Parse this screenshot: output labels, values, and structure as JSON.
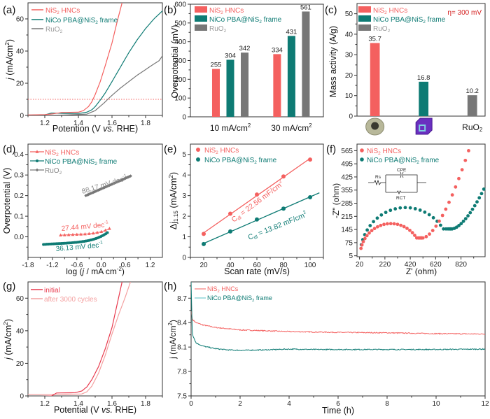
{
  "colors": {
    "nis2": "#f4605f",
    "nico": "#0e7b74",
    "ruo2": "#777777",
    "after": "#f4a0a0",
    "initial": "#e83a4e",
    "eta": "#d42020"
  },
  "chart_data": [
    {
      "panel": "(a)",
      "type": "line",
      "xlabel": "Potention (V vs. RHE)",
      "ylabel": "j (mA/cm2)",
      "xlim": [
        1.1,
        1.9
      ],
      "ylim": [
        0,
        70
      ],
      "xticks": [
        "1.2",
        "1.4",
        "1.6",
        "1.8"
      ],
      "yticks": [
        "0",
        "20",
        "40",
        "60"
      ],
      "reference_line_y": 10,
      "legend": [
        "NiS2 HNCs",
        "NiCo PBA@NiS2 frame",
        "RuO2"
      ],
      "legend_position": "top-left",
      "series": [
        {
          "name": "NiS2 HNCs",
          "color": "nis2",
          "x": [
            1.1,
            1.2,
            1.25,
            1.3,
            1.4,
            1.43,
            1.46,
            1.48,
            1.5,
            1.53,
            1.56,
            1.6,
            1.63,
            1.66
          ],
          "y": [
            0.3,
            0.5,
            1.0,
            1.8,
            2.0,
            3.0,
            5.5,
            8.5,
            13,
            21,
            31,
            45,
            58,
            70
          ]
        },
        {
          "name": "NiCo PBA@NiS2 frame",
          "color": "nico",
          "x": [
            1.1,
            1.2,
            1.24,
            1.3,
            1.4,
            1.45,
            1.48,
            1.5,
            1.53,
            1.56,
            1.6,
            1.65,
            1.7,
            1.75,
            1.8,
            1.85,
            1.9
          ],
          "y": [
            0.2,
            0.3,
            1.5,
            1.3,
            1.2,
            2.0,
            3.5,
            5.5,
            9.5,
            14,
            21,
            30,
            39,
            47,
            54,
            60,
            65
          ]
        },
        {
          "name": "RuO2",
          "color": "ruo2",
          "x": [
            1.1,
            1.3,
            1.45,
            1.5,
            1.55,
            1.6,
            1.65,
            1.7,
            1.75,
            1.8,
            1.85,
            1.88,
            1.9
          ],
          "y": [
            0,
            0.2,
            0.8,
            3,
            7.5,
            12.5,
            17,
            21,
            25,
            28.5,
            32,
            34,
            37
          ]
        }
      ]
    },
    {
      "panel": "(b)",
      "type": "bar",
      "ylabel": "Overpotential (mV)",
      "ylim": [
        0,
        600
      ],
      "yticks": [
        "0",
        "100",
        "200",
        "300",
        "400",
        "500",
        "600"
      ],
      "categories": [
        "10 mA/cm2",
        "30 mA/cm2"
      ],
      "legend_position": "top-left",
      "series": [
        {
          "name": "NiS2 HNCs",
          "color": "nis2",
          "values": [
            255,
            334
          ]
        },
        {
          "name": "NiCo PBA@NiS2 frame",
          "color": "nico",
          "values": [
            304,
            431
          ]
        },
        {
          "name": "RuO2",
          "color": "ruo2",
          "values": [
            342,
            561
          ]
        }
      ]
    },
    {
      "panel": "(c)",
      "type": "bar",
      "ylabel": "Mass activity (A/g)",
      "ylim": [
        0,
        55
      ],
      "yticks": [
        "0",
        "10",
        "20",
        "30",
        "40",
        "50"
      ],
      "annotation": "η= 300 mV",
      "categories": [
        "NiS2 HNCs image",
        "NiCo PBA@NiS2 frame image",
        "RuO2"
      ],
      "category_label_text": "RuO2",
      "legend": [
        "NiS2 HNCs",
        "NiCo PBA@NiS2 frame",
        "RuO2"
      ],
      "legend_position": "top-left",
      "values": [
        35.7,
        16.8,
        10.2
      ],
      "value_labels": [
        "35.7",
        "16.8",
        "10.2"
      ],
      "bar_colors": [
        "nis2",
        "nico",
        "ruo2"
      ]
    },
    {
      "panel": "(d)",
      "type": "scatter",
      "xlabel": "log (j / mA cm-2)",
      "ylabel": "Overpotential (V)",
      "xlim": [
        -1.8,
        1.5
      ],
      "ylim": [
        -0.1,
        0.45
      ],
      "xticks": [
        "-1.8",
        "-1.2",
        "-0.6",
        "0.0",
        "0.6",
        "1.2"
      ],
      "yticks": [
        "0.0",
        "0.1",
        "0.2",
        "0.3",
        "0.4"
      ],
      "legend_position": "top-left",
      "series": [
        {
          "name": "NiS2 HNCs",
          "color": "nis2",
          "marker": "triangle",
          "x_range": [
            -1.0,
            0.2
          ],
          "y_range": [
            0.008,
            0.04
          ],
          "slope_label": "27.44 mV dec-1"
        },
        {
          "name": "NiCo PBA@NiS2 frame",
          "color": "nico",
          "marker": "circle",
          "x_range": [
            -1.42,
            0.15
          ],
          "y_range": [
            -0.037,
            0.02
          ],
          "slope_label": "36.13 mV dec-1"
        },
        {
          "name": "RuO2",
          "color": "ruo2",
          "marker": "diamond",
          "x_range": [
            -0.38,
            0.72
          ],
          "y_range": [
            0.2,
            0.295
          ],
          "slope_label": "88.17 mV dec-1"
        }
      ]
    },
    {
      "panel": "(e)",
      "type": "scatter",
      "xlabel": "Scan rate (mV/s)",
      "ylabel": "Δj1.15 (mA/cm2)",
      "xlim": [
        10,
        110
      ],
      "ylim": [
        0,
        5.5
      ],
      "xticks": [
        "20",
        "40",
        "60",
        "80",
        "100"
      ],
      "yticks": [
        "0",
        "1",
        "2",
        "3",
        "4",
        "5"
      ],
      "legend_position": "top-left",
      "series": [
        {
          "name": "NiS2 HNCs",
          "color": "nis2",
          "x": [
            20,
            40,
            60,
            80,
            100
          ],
          "y": [
            1.14,
            2.12,
            3.05,
            3.93,
            4.75
          ],
          "fit_label": "Cdl = 22.56 mF/cm2"
        },
        {
          "name": "NiCo PBA@NiS2 frame",
          "color": "nico",
          "x": [
            20,
            40,
            60,
            80,
            100
          ],
          "y": [
            0.65,
            1.26,
            1.84,
            2.37,
            2.92
          ],
          "fit_label": "Cdl = 13.82 mF/cm2"
        }
      ]
    },
    {
      "panel": "(f)",
      "type": "scatter",
      "xlabel": "Z' (ohm)",
      "ylabel": "-Z'' (ohm)",
      "xlim": [
        0,
        1000
      ],
      "ylim": [
        5,
        600
      ],
      "xticks": [
        "20",
        "220",
        "420",
        "620",
        "820"
      ],
      "yticks": [
        "5",
        "75",
        "145",
        "215",
        "285",
        "355",
        "425",
        "495",
        "565"
      ],
      "legend_position": "top-left",
      "inset_labels": [
        "Rs",
        "CPE",
        "RCT"
      ],
      "series": [
        {
          "name": "NiS2 HNCs",
          "color": "nis2",
          "semicircle_end_x": 510,
          "semicircle_peak": 175,
          "min_y": 100,
          "tail_end": [
            880,
            565
          ]
        },
        {
          "name": "NiCo PBA@NiS2 frame",
          "color": "nico",
          "semicircle_end_x": 740,
          "semicircle_peak": 262,
          "min_y": 148,
          "tail_end": [
            1000,
            360
          ]
        }
      ]
    },
    {
      "panel": "(g)",
      "type": "line",
      "xlabel": "Potential (V vs. RHE)",
      "ylabel": "j (mA/cm2)",
      "xlim": [
        1.1,
        1.9
      ],
      "ylim": [
        0,
        70
      ],
      "xticks": [
        "1.2",
        "1.4",
        "1.6",
        "1.8"
      ],
      "yticks": [
        "0",
        "20",
        "40",
        "60"
      ],
      "legend_position": "top-left",
      "series": [
        {
          "name": "initial",
          "color": "initial",
          "x": [
            1.1,
            1.24,
            1.27,
            1.38,
            1.42,
            1.45,
            1.48,
            1.52,
            1.56,
            1.6,
            1.63,
            1.66
          ],
          "y": [
            -0.5,
            0,
            1.8,
            2,
            3,
            5.5,
            10,
            18,
            29,
            42,
            56,
            70
          ]
        },
        {
          "name": "after 3000 cycles",
          "color": "after",
          "x": [
            1.1,
            1.3,
            1.42,
            1.45,
            1.48,
            1.52,
            1.56,
            1.6,
            1.64,
            1.68,
            1.71
          ],
          "y": [
            1,
            1,
            1.2,
            2.5,
            6,
            14,
            25,
            38,
            50,
            61,
            70
          ]
        }
      ]
    },
    {
      "panel": "(h)",
      "type": "line",
      "xlabel": "Time (h)",
      "ylabel": "j (mA/cm2)",
      "xlim": [
        0,
        12
      ],
      "ylim": [
        7.5,
        8.9
      ],
      "xticks": [
        "0",
        "2",
        "4",
        "6",
        "8",
        "10",
        "12"
      ],
      "yticks": [
        "7.5",
        "7.8",
        "8.1",
        "8.4",
        "8.7"
      ],
      "legend_position": "top-left",
      "series": [
        {
          "name": "NiS2 HNCs",
          "color": "nis2",
          "x": [
            0,
            0.05,
            0.2,
            0.5,
            1,
            2,
            3,
            4,
            6,
            8,
            10,
            12
          ],
          "y": [
            8.54,
            8.44,
            8.4,
            8.37,
            8.34,
            8.31,
            8.3,
            8.29,
            8.28,
            8.275,
            8.265,
            8.26
          ]
        },
        {
          "name": "NiCo PBA@NiS2 frame",
          "color": "nico",
          "x": [
            0,
            0.05,
            0.2,
            0.5,
            1,
            1.5,
            2,
            3,
            4,
            5,
            6,
            8,
            10,
            12
          ],
          "y": [
            8.9,
            8.26,
            8.15,
            8.11,
            8.08,
            8.065,
            8.06,
            8.065,
            8.075,
            8.07,
            8.07,
            8.07,
            8.07,
            8.075
          ]
        }
      ]
    }
  ],
  "panels": {
    "a": {
      "label": "(a)",
      "xlabel_pre": "Potention (V ",
      "xlabel_it": "vs.",
      "xlabel_post": " RHE)",
      "ylabel_it": "j",
      "ylabel_rest": " (mA/cm",
      "sup": "2",
      "close": ")"
    },
    "b": {
      "label": "(b)",
      "ylabel": "Overpotential (mV)",
      "cat1": "10 mA/cm",
      "cat2": "30 mA/cm",
      "sup": "2"
    },
    "c": {
      "label": "(c)",
      "ylabel": "Mass activity (A/g)",
      "eta": "η= 300 mV",
      "ruo2_main": "RuO",
      "ruo2_sub": "2"
    },
    "d": {
      "label": "(d)",
      "ylabel": "Overpotential (V)",
      "xlabel_pre": "log (",
      "xlabel_it": "j",
      "xlabel_post": " / mA cm",
      "xlabel_sup": "-2",
      "xlabel_close": ")",
      "slope_ruo2": "88.17 mV dec",
      "slope_nis2": "27.44 mV dec",
      "slope_nico": "36.13 mV dec",
      "slope_sup": "-1"
    },
    "e": {
      "label": "(e)",
      "xlabel": "Scan rate (mV/s)",
      "ylabel_main": "Δj",
      "ylabel_sub": "1.15",
      "ylabel_rest": " (mA/cm",
      "sup": "2",
      "close": ")",
      "fit_nis2_pre": "C",
      "fit_sub": "dl",
      "fit_nis2_post": " = 22.56 mF/cm",
      "fit_nico_post": " = 13.82 mF/cm"
    },
    "f": {
      "label": "(f)",
      "xlabel": "Z' (ohm)",
      "ylabel": "-Z\" (ohm)",
      "rs": "Rs",
      "cpe": "CPE",
      "rct": "RCT"
    },
    "g": {
      "label": "(g)",
      "xlabel_pre": "Potential (V ",
      "xlabel_it": "vs.",
      "xlabel_post": " RHE)",
      "ylabel_it": "j",
      "ylabel_rest": " (mA/cm",
      "sup": "2",
      "close": ")"
    },
    "h": {
      "label": "(h)",
      "xlabel": "Time (h)",
      "ylabel_rest": "j (mA/cm",
      "sup": "2",
      "close": ")"
    }
  },
  "legend_text": {
    "nis2_main": "NiS",
    "nis2_sub": "2",
    "nis2_post": " HNCs",
    "nico_main": "NiCo PBA@NiS",
    "nico_sub": "2",
    "nico_post": " frame",
    "ruo2_main": "RuO",
    "ruo2_sub": "2",
    "initial": "initial",
    "after": "after 3000 cycles"
  }
}
